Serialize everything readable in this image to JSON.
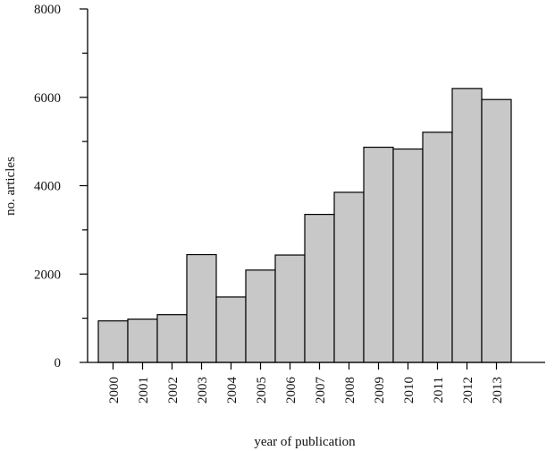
{
  "chart_data": {
    "type": "bar",
    "title": "",
    "xlabel": "year of publication",
    "ylabel": "no. articles",
    "categories": [
      "2000",
      "2001",
      "2002",
      "2003",
      "2004",
      "2005",
      "2006",
      "2007",
      "2008",
      "2009",
      "2010",
      "2011",
      "2012",
      "2013"
    ],
    "values": [
      940,
      980,
      1080,
      2440,
      1480,
      2090,
      2430,
      3350,
      3850,
      4870,
      4830,
      5210,
      6200,
      5950
    ],
    "ylim": [
      0,
      8000
    ],
    "yticks_major": [
      0,
      2000,
      4000,
      6000,
      8000
    ],
    "ytick_labels": [
      "0",
      "2000",
      "4000",
      "6000",
      "8000"
    ],
    "yticks_minor": [
      1000,
      3000,
      5000,
      7000
    ],
    "grid": false,
    "legend": "none",
    "bar_color": "#c8c8c8",
    "edge_color": "#000000"
  }
}
